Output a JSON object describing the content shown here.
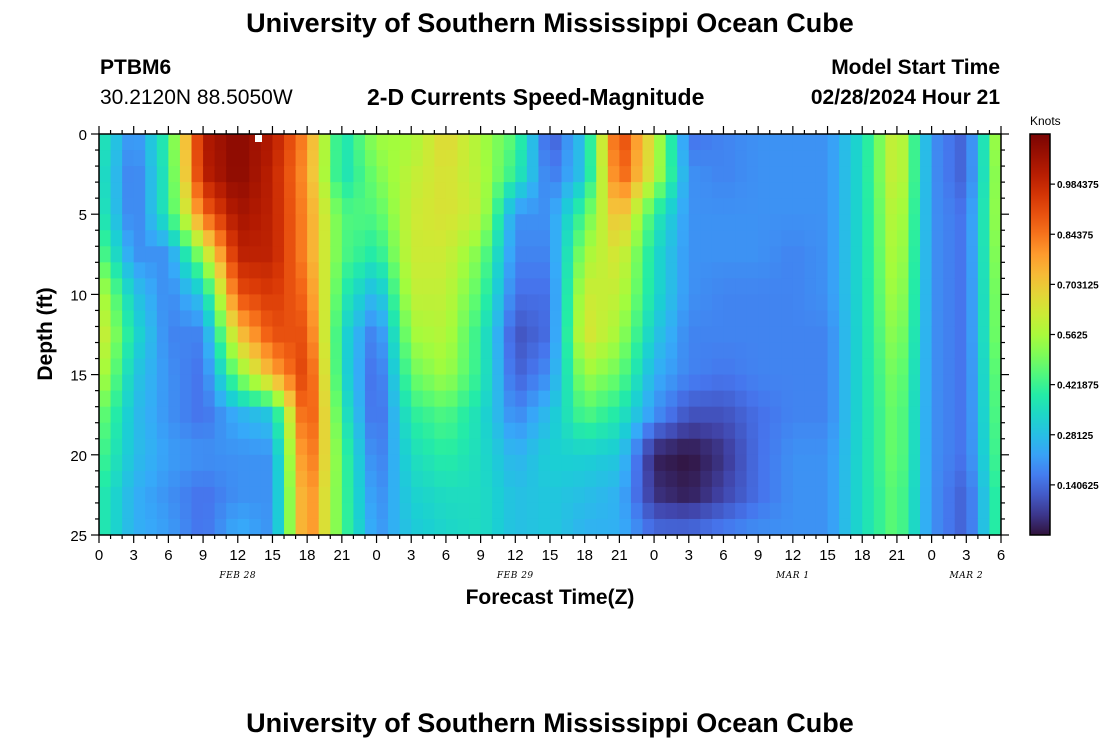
{
  "header": {
    "title": "University of Southern Mississippi Ocean Cube",
    "station_id": "PTBM6",
    "coordinates": "30.2120N  88.5050W",
    "plot_title": "2-D Currents Speed-Magnitude",
    "model_start_label": "Model Start Time",
    "model_start_value": "02/28/2024 Hour 21"
  },
  "footer": {
    "title": "University of Southern Mississippi Ocean Cube"
  },
  "chart_data": {
    "type": "heatmap",
    "title": "2-D Currents Speed-Magnitude",
    "xlabel": "Forecast Time(Z)",
    "ylabel": "Depth (ft)",
    "x_ticks": [
      "0",
      "3",
      "6",
      "9",
      "12",
      "15",
      "18",
      "21",
      "0",
      "3",
      "6",
      "9",
      "12",
      "15",
      "18",
      "21",
      "0",
      "3",
      "6",
      "9",
      "12",
      "15",
      "18",
      "21",
      "0",
      "3",
      "6"
    ],
    "x_range_hours": [
      0,
      78
    ],
    "date_labels": [
      {
        "label": "FEB 28",
        "hour": 12
      },
      {
        "label": "FEB 29",
        "hour": 36
      },
      {
        "label": "MAR 1",
        "hour": 60
      },
      {
        "label": "MAR 2",
        "hour": 75
      }
    ],
    "y_ticks": [
      "0",
      "5",
      "10",
      "15",
      "20",
      "25"
    ],
    "ylim": [
      0,
      25
    ],
    "colorbar": {
      "unit": "Knots",
      "min": 0.0,
      "max": 1.125,
      "ticks": [
        "0.140625",
        "0.28125",
        "0.421875",
        "0.5625",
        "0.703125",
        "0.84375",
        "0.984375"
      ]
    },
    "time_columns_hours": [
      0,
      3,
      6,
      9,
      12,
      15,
      18,
      21,
      24,
      27,
      30,
      33,
      36,
      39,
      42,
      45,
      48,
      51,
      54,
      57,
      60,
      63,
      66,
      69,
      72,
      75,
      78
    ],
    "depth_rows_ft": [
      0,
      2.5,
      5,
      7.5,
      10,
      12.5,
      15,
      17.5,
      20,
      22.5,
      25
    ],
    "speed_knots": [
      [
        0.4,
        0.18,
        0.42,
        1.02,
        1.1,
        1.02,
        0.8,
        0.35,
        0.55,
        0.55,
        0.68,
        0.56,
        0.45,
        0.1,
        0.3,
        0.95,
        0.62,
        0.15,
        0.18,
        0.2,
        0.2,
        0.2,
        0.35,
        0.65,
        0.2,
        0.12,
        0.62
      ],
      [
        0.38,
        0.15,
        0.4,
        1.0,
        1.1,
        1.0,
        0.78,
        0.35,
        0.5,
        0.6,
        0.65,
        0.58,
        0.4,
        0.15,
        0.3,
        0.9,
        0.6,
        0.2,
        0.18,
        0.2,
        0.2,
        0.2,
        0.35,
        0.65,
        0.2,
        0.12,
        0.6
      ],
      [
        0.4,
        0.15,
        0.4,
        0.85,
        1.05,
        1.0,
        0.8,
        0.45,
        0.45,
        0.62,
        0.65,
        0.6,
        0.2,
        0.2,
        0.45,
        0.75,
        0.4,
        0.2,
        0.2,
        0.2,
        0.2,
        0.2,
        0.35,
        0.62,
        0.2,
        0.15,
        0.6
      ],
      [
        0.48,
        0.2,
        0.2,
        0.55,
        1.0,
        1.0,
        0.8,
        0.45,
        0.38,
        0.62,
        0.62,
        0.5,
        0.18,
        0.18,
        0.55,
        0.65,
        0.35,
        0.2,
        0.2,
        0.2,
        0.18,
        0.2,
        0.35,
        0.6,
        0.2,
        0.15,
        0.58
      ],
      [
        0.6,
        0.3,
        0.18,
        0.3,
        0.9,
        0.95,
        0.85,
        0.4,
        0.25,
        0.6,
        0.6,
        0.45,
        0.15,
        0.15,
        0.62,
        0.6,
        0.35,
        0.2,
        0.18,
        0.18,
        0.18,
        0.2,
        0.35,
        0.58,
        0.2,
        0.15,
        0.56
      ],
      [
        0.65,
        0.35,
        0.18,
        0.18,
        0.7,
        0.9,
        0.9,
        0.35,
        0.15,
        0.55,
        0.58,
        0.4,
        0.1,
        0.15,
        0.65,
        0.55,
        0.3,
        0.18,
        0.18,
        0.18,
        0.18,
        0.18,
        0.35,
        0.55,
        0.2,
        0.15,
        0.55
      ],
      [
        0.6,
        0.3,
        0.2,
        0.15,
        0.5,
        0.75,
        0.95,
        0.35,
        0.12,
        0.48,
        0.55,
        0.4,
        0.12,
        0.2,
        0.55,
        0.48,
        0.25,
        0.18,
        0.16,
        0.18,
        0.18,
        0.18,
        0.35,
        0.52,
        0.2,
        0.15,
        0.52
      ],
      [
        0.5,
        0.28,
        0.2,
        0.15,
        0.25,
        0.3,
        0.95,
        0.4,
        0.12,
        0.4,
        0.45,
        0.35,
        0.18,
        0.28,
        0.45,
        0.38,
        0.2,
        0.1,
        0.1,
        0.15,
        0.18,
        0.18,
        0.35,
        0.5,
        0.2,
        0.15,
        0.5
      ],
      [
        0.45,
        0.28,
        0.22,
        0.2,
        0.2,
        0.2,
        0.9,
        0.45,
        0.15,
        0.35,
        0.4,
        0.35,
        0.25,
        0.32,
        0.32,
        0.3,
        0.02,
        0.0,
        0.05,
        0.15,
        0.2,
        0.2,
        0.35,
        0.5,
        0.2,
        0.15,
        0.48
      ],
      [
        0.4,
        0.25,
        0.2,
        0.15,
        0.2,
        0.2,
        0.85,
        0.45,
        0.18,
        0.32,
        0.35,
        0.35,
        0.28,
        0.3,
        0.28,
        0.25,
        0.05,
        0.02,
        0.08,
        0.15,
        0.2,
        0.2,
        0.35,
        0.48,
        0.2,
        0.12,
        0.45
      ],
      [
        0.4,
        0.25,
        0.22,
        0.15,
        0.25,
        0.2,
        0.85,
        0.45,
        0.2,
        0.3,
        0.33,
        0.35,
        0.28,
        0.3,
        0.25,
        0.25,
        0.15,
        0.15,
        0.18,
        0.2,
        0.2,
        0.2,
        0.35,
        0.48,
        0.2,
        0.12,
        0.45
      ]
    ]
  }
}
